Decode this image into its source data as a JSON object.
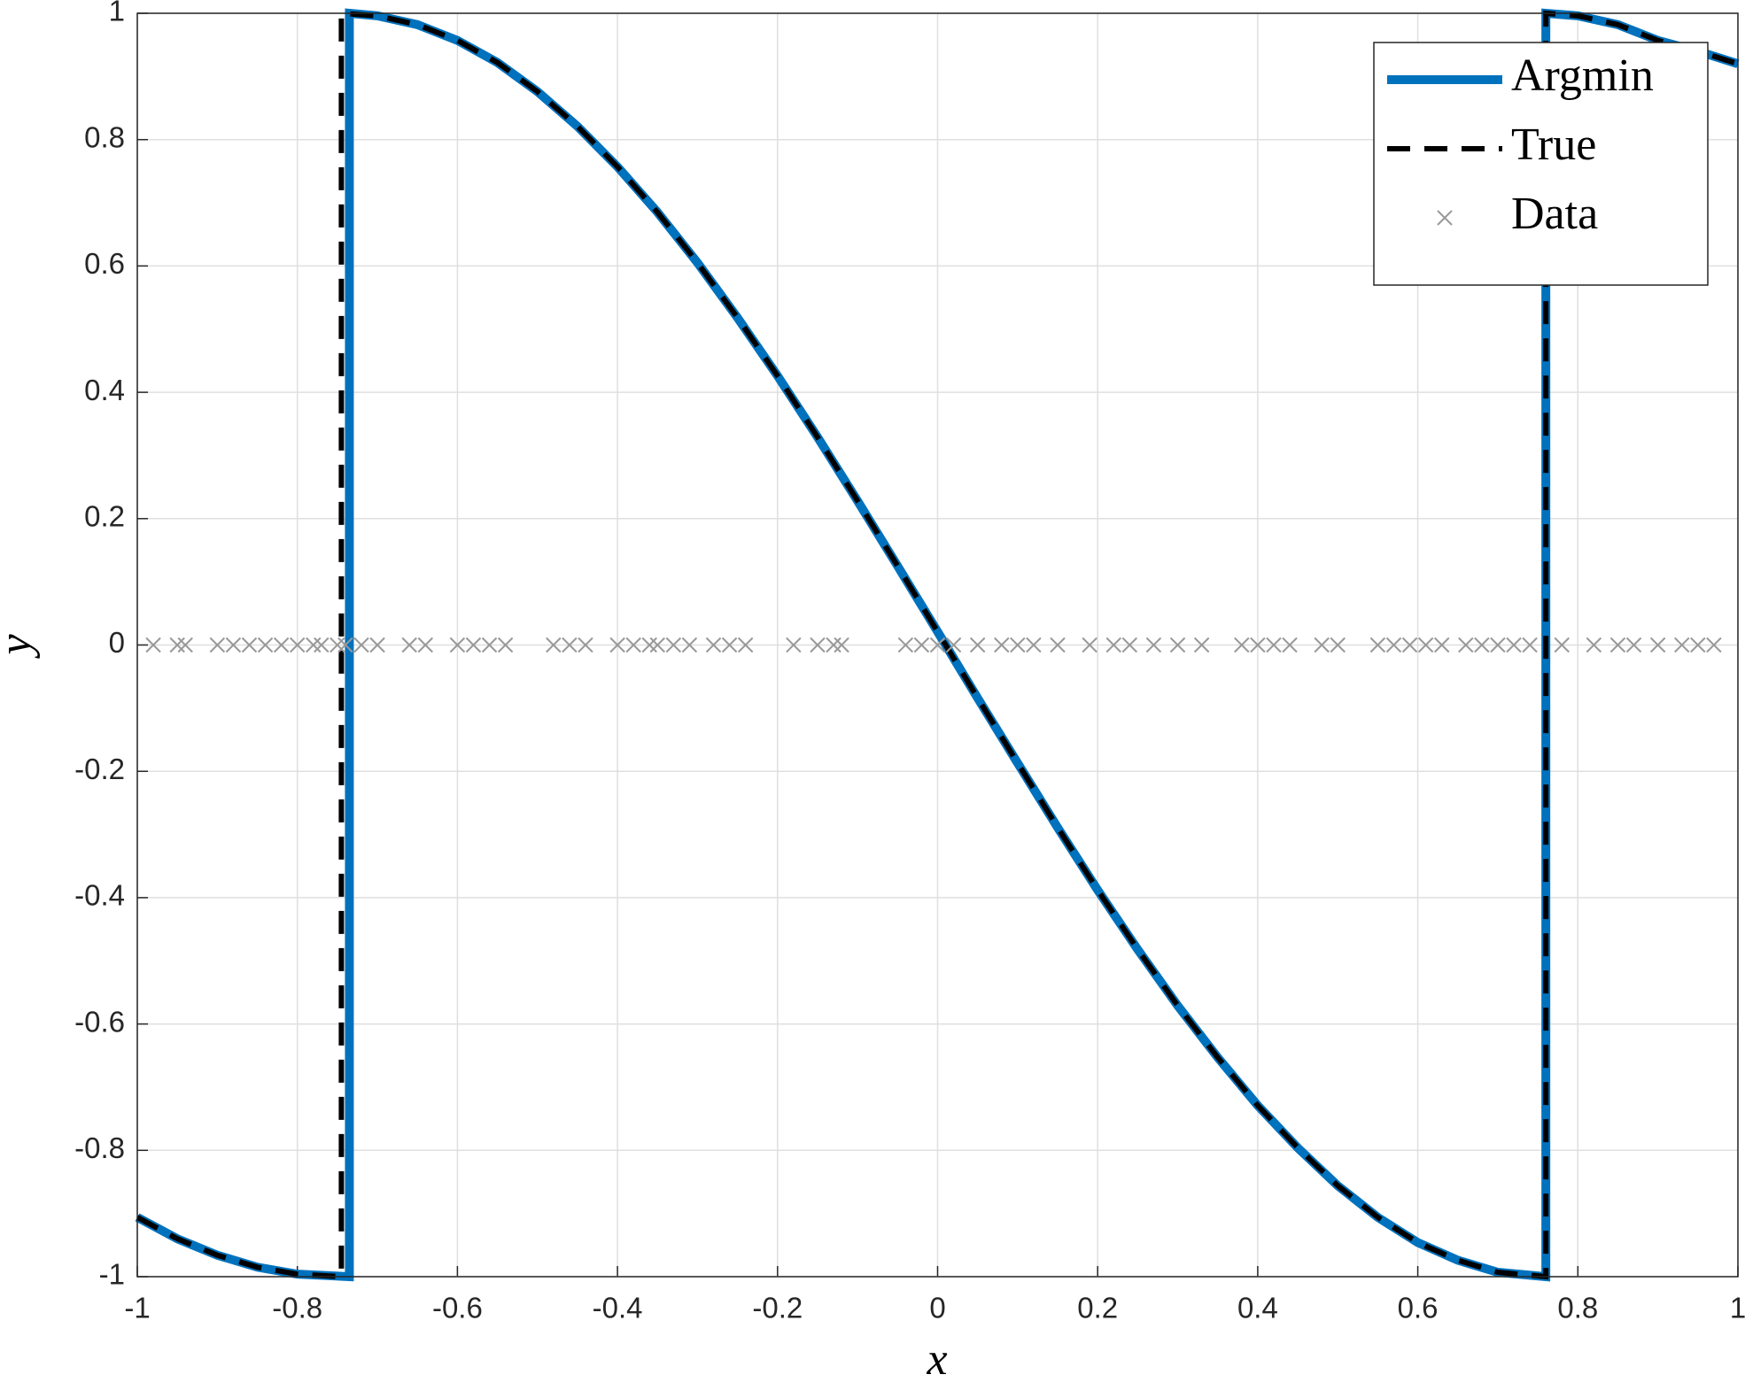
{
  "chart_data": {
    "type": "line",
    "x_label": "x",
    "y_label": "y",
    "xlim": [
      -1,
      1
    ],
    "ylim": [
      -1,
      1
    ],
    "xticks": [
      -1,
      -0.8,
      -0.6,
      -0.4,
      -0.2,
      0,
      0.2,
      0.4,
      0.6,
      0.8,
      1
    ],
    "yticks": [
      -1,
      -0.8,
      -0.6,
      -0.4,
      -0.2,
      0,
      0.2,
      0.4,
      0.6,
      0.8,
      1
    ],
    "grid": true,
    "legend": "upper right",
    "series": [
      {
        "name": "Argmin",
        "color": "#0072bd",
        "style": "solid",
        "x": [
          -1,
          -0.95,
          -0.9,
          -0.85,
          -0.8,
          -0.735,
          -0.735,
          -0.7,
          -0.65,
          -0.6,
          -0.55,
          -0.5,
          -0.45,
          -0.4,
          -0.35,
          -0.3,
          -0.25,
          -0.2,
          -0.15,
          -0.1,
          -0.05,
          0,
          0.05,
          0.1,
          0.15,
          0.2,
          0.25,
          0.3,
          0.35,
          0.4,
          0.45,
          0.5,
          0.55,
          0.6,
          0.65,
          0.7,
          0.76,
          0.76,
          0.8,
          0.85,
          0.9,
          0.95,
          1
        ],
        "values": [
          -0.906,
          -0.94,
          -0.966,
          -0.985,
          -0.996,
          -1,
          1,
          0.996,
          0.982,
          0.957,
          0.922,
          0.876,
          0.821,
          0.757,
          0.685,
          0.605,
          0.518,
          0.426,
          0.329,
          0.228,
          0.125,
          0.021,
          -0.084,
          -0.187,
          -0.289,
          -0.388,
          -0.482,
          -0.571,
          -0.653,
          -0.729,
          -0.796,
          -0.856,
          -0.906,
          -0.946,
          -0.974,
          -0.993,
          -1,
          1,
          0.996,
          0.982,
          0.957,
          0.94,
          0.92
        ]
      },
      {
        "name": "True",
        "color": "#000000",
        "style": "dashed",
        "x": [
          -1,
          -0.95,
          -0.9,
          -0.85,
          -0.8,
          -0.745,
          -0.745,
          -0.7,
          -0.65,
          -0.6,
          -0.55,
          -0.5,
          -0.45,
          -0.4,
          -0.35,
          -0.3,
          -0.25,
          -0.2,
          -0.15,
          -0.1,
          -0.05,
          0,
          0.05,
          0.1,
          0.15,
          0.2,
          0.25,
          0.3,
          0.35,
          0.4,
          0.45,
          0.5,
          0.55,
          0.6,
          0.65,
          0.7,
          0.76,
          0.76,
          0.8,
          0.85,
          0.9,
          0.95,
          1
        ],
        "values": [
          -0.906,
          -0.94,
          -0.966,
          -0.985,
          -0.996,
          -1,
          1,
          0.996,
          0.982,
          0.957,
          0.922,
          0.876,
          0.821,
          0.757,
          0.685,
          0.605,
          0.518,
          0.426,
          0.329,
          0.228,
          0.125,
          0.021,
          -0.084,
          -0.187,
          -0.289,
          -0.388,
          -0.482,
          -0.571,
          -0.653,
          -0.729,
          -0.796,
          -0.856,
          -0.906,
          -0.946,
          -0.974,
          -0.993,
          -1,
          1,
          0.996,
          0.982,
          0.957,
          0.94,
          0.92
        ]
      },
      {
        "name": "Data",
        "color": "#999999",
        "style": "marker",
        "x": [
          -0.98,
          -0.95,
          -0.94,
          -0.9,
          -0.88,
          -0.86,
          -0.84,
          -0.82,
          -0.8,
          -0.78,
          -0.77,
          -0.75,
          -0.74,
          -0.72,
          -0.7,
          -0.66,
          -0.64,
          -0.6,
          -0.58,
          -0.56,
          -0.54,
          -0.48,
          -0.46,
          -0.44,
          -0.4,
          -0.38,
          -0.36,
          -0.35,
          -0.33,
          -0.31,
          -0.28,
          -0.26,
          -0.24,
          -0.18,
          -0.15,
          -0.13,
          -0.12,
          -0.04,
          -0.02,
          0,
          0.02,
          0.05,
          0.08,
          0.1,
          0.12,
          0.15,
          0.19,
          0.22,
          0.24,
          0.27,
          0.3,
          0.33,
          0.38,
          0.4,
          0.42,
          0.44,
          0.48,
          0.5,
          0.55,
          0.57,
          0.59,
          0.61,
          0.63,
          0.66,
          0.68,
          0.7,
          0.72,
          0.74,
          0.78,
          0.82,
          0.85,
          0.87,
          0.9,
          0.93,
          0.95,
          0.97
        ],
        "values": [
          0,
          0,
          0,
          0,
          0,
          0,
          0,
          0,
          0,
          0,
          0,
          0,
          0,
          0,
          0,
          0,
          0,
          0,
          0,
          0,
          0,
          0,
          0,
          0,
          0,
          0,
          0,
          0,
          0,
          0,
          0,
          0,
          0,
          0,
          0,
          0,
          0,
          0,
          0,
          0,
          0,
          0,
          0,
          0,
          0,
          0,
          0,
          0,
          0,
          0,
          0,
          0,
          0,
          0,
          0,
          0,
          0,
          0,
          0,
          0,
          0,
          0,
          0,
          0,
          0,
          0,
          0,
          0,
          0,
          0,
          0,
          0,
          0,
          0,
          0,
          0
        ]
      }
    ]
  }
}
